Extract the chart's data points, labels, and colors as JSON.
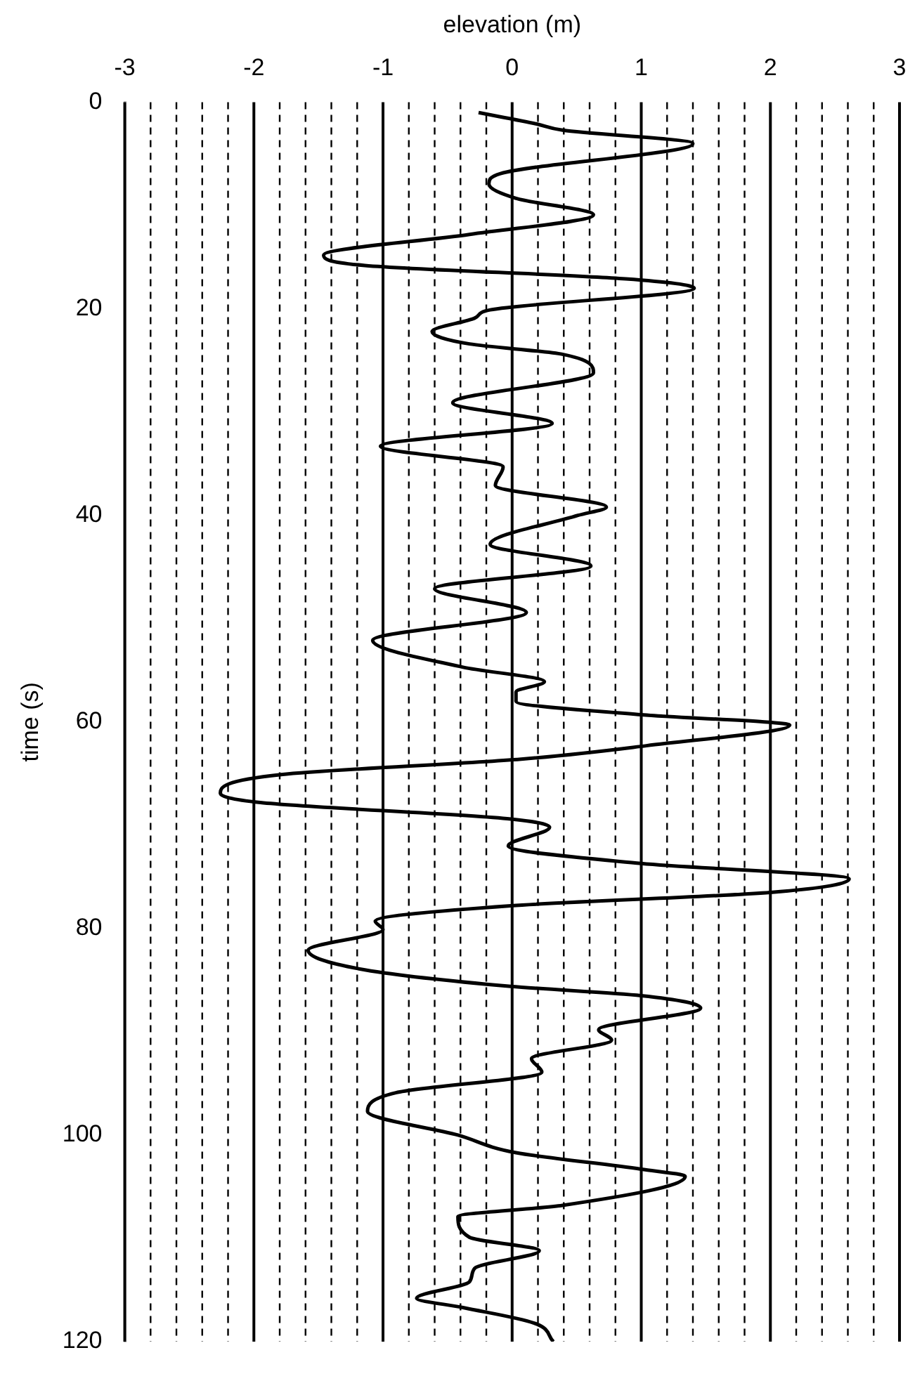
{
  "chart_data": {
    "type": "line",
    "orientation": "horizontal",
    "xlabel": "elevation (m)",
    "ylabel": "time (s)",
    "ylim": [
      120,
      0
    ],
    "yticks": [
      0,
      20,
      40,
      60,
      80,
      100,
      120
    ],
    "xlim": [
      -3,
      3
    ],
    "xticks": [
      -3,
      {
        "value": -2.8,
        "label": null
      },
      {
        "value": -2.6,
        "label": null
      },
      {
        "value": -2.4,
        "label": null
      },
      {
        "value": -2.2,
        "label": null
      },
      -2,
      {
        "value": -1.8,
        "label": null
      },
      {
        "value": -1.6,
        "label": null
      },
      {
        "value": -1.4,
        "label": null
      },
      {
        "value": -1.2,
        "label": null
      },
      -1,
      {
        "value": -0.8,
        "label": null
      },
      {
        "value": -0.6,
        "label": null
      },
      {
        "value": -0.4,
        "label": null
      },
      {
        "value": -0.2,
        "label": null
      },
      0,
      {
        "value": 0.2,
        "label": null
      },
      {
        "value": 0.4,
        "label": null
      },
      {
        "value": 0.6,
        "label": null
      },
      {
        "value": 0.8,
        "label": null
      },
      1,
      {
        "value": 1.2,
        "label": null
      },
      {
        "value": 1.4,
        "label": null
      },
      {
        "value": 1.6,
        "label": null
      },
      {
        "value": 1.8,
        "label": null
      },
      2,
      {
        "value": 2.2,
        "label": null
      },
      {
        "value": 2.4,
        "label": null
      },
      {
        "value": 2.6,
        "label": null
      },
      {
        "value": 2.8,
        "label": null
      },
      3
    ],
    "grid": "x",
    "series": [
      {
        "color": "#000000",
        "x": [
          1.0,
          2.1,
          2.7,
          4.0,
          6.9,
          7.9,
          9.3,
          10.9,
          12.8,
          14.8,
          15.8,
          17.1,
          18.0,
          20.1,
          20.9,
          22.2,
          23.4,
          24.4,
          26.2,
          29.1,
          31.1,
          33.3,
          35.3,
          37.1,
          39.2,
          40.0,
          42.8,
          44.9,
          47.1,
          49.4,
          52.1,
          54.7,
          56.1,
          57.1,
          58.0,
          59.3,
          60.3,
          62.3,
          63.6,
          65.1,
          66.9,
          67.8,
          69.4,
          70.2,
          72.0,
          73.7,
          75.2,
          76.5,
          77.8,
          79.3,
          80.1,
          82.1,
          84.0,
          85.6,
          86.5,
          87.7,
          89.8,
          90.8,
          92.6,
          93.9,
          95.9,
          97.7,
          100.0,
          101.7,
          103.3,
          104.0,
          106.8,
          107.9,
          109.9,
          111.2,
          112.9,
          114.2,
          115.8,
          116.7,
          118.2,
          120.0
        ],
        "values": [
          -0.26,
          0.19,
          0.39,
          1.4,
          -0.09,
          -0.18,
          0.03,
          0.63,
          -0.33,
          -1.46,
          -1.14,
          0.88,
          1.41,
          -0.17,
          -0.29,
          -0.62,
          -0.33,
          0.39,
          0.63,
          -0.46,
          0.31,
          -1.02,
          -0.07,
          -0.13,
          0.73,
          0.51,
          -0.17,
          0.61,
          -0.6,
          0.11,
          -1.08,
          -0.38,
          0.25,
          0.03,
          0.03,
          1.0,
          2.15,
          1.04,
          0.07,
          -1.79,
          -2.26,
          -1.95,
          -0.01,
          0.29,
          -0.03,
          1.0,
          2.61,
          2.0,
          -0.01,
          -1.06,
          -1.0,
          -1.58,
          -1.14,
          -0.01,
          1.0,
          1.46,
          0.67,
          0.77,
          0.15,
          0.23,
          -0.9,
          -1.12,
          -0.42,
          0.03,
          1.0,
          1.34,
          0.39,
          -0.42,
          -0.33,
          0.21,
          -0.29,
          -0.33,
          -0.74,
          -0.38,
          0.17,
          0.32
        ]
      }
    ]
  }
}
